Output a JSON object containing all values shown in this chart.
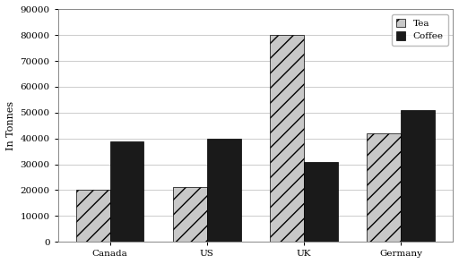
{
  "categories": [
    "Canada",
    "US",
    "UK",
    "Germany"
  ],
  "tea_values": [
    20000,
    21000,
    80000,
    42000
  ],
  "coffee_values": [
    39000,
    40000,
    31000,
    51000
  ],
  "tea_color": "#c8c8c8",
  "tea_hatch": "//",
  "coffee_color": "#1a1a1a",
  "coffee_hatch": "",
  "ylabel": "In Tonnes",
  "ylim": [
    0,
    90000
  ],
  "yticks": [
    0,
    10000,
    20000,
    30000,
    40000,
    50000,
    60000,
    70000,
    80000,
    90000
  ],
  "legend_labels": [
    "Tea",
    "Coffee"
  ],
  "bar_width": 0.35,
  "background_color": "#ffffff",
  "plot_bg_color": "#ffffff",
  "grid_color": "#cccccc",
  "axis_fontsize": 8,
  "tick_fontsize": 7.5
}
